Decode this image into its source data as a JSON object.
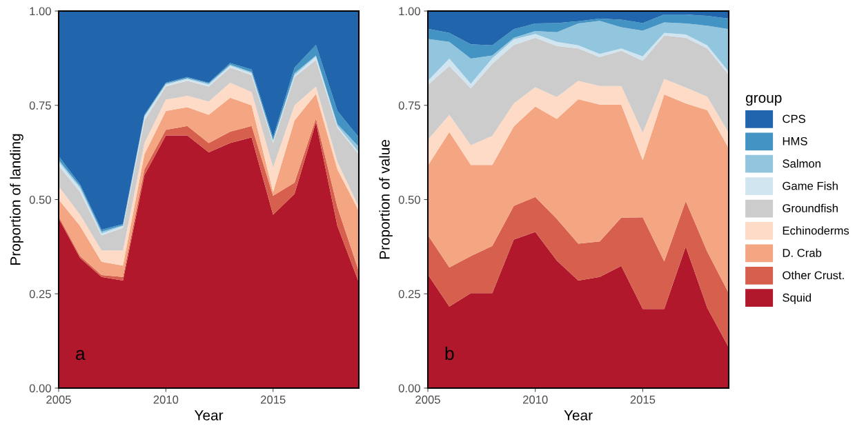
{
  "chart_data": [
    {
      "type": "area",
      "stacked": true,
      "xlabel": "Year",
      "ylabel": "Proportion of landing",
      "annotations": [
        "a"
      ],
      "x": [
        2005,
        2006,
        2007,
        2008,
        2009,
        2010,
        2011,
        2012,
        2013,
        2014,
        2015,
        2016,
        2017,
        2018,
        2019
      ],
      "xlim": [
        2005,
        2019
      ],
      "xticks": [
        2005,
        2010,
        2015
      ],
      "ylim": [
        0,
        1
      ],
      "yticks": [
        {
          "value": 0,
          "label": "0.00"
        },
        {
          "value": 0.25,
          "label": "0.25"
        },
        {
          "value": 0.5,
          "label": "0.50"
        },
        {
          "value": 0.75,
          "label": "0.75"
        },
        {
          "value": 1,
          "label": "1.00"
        }
      ],
      "grid": false,
      "legend": "right",
      "series": [
        {
          "name": "Squid",
          "color": "#b2182b",
          "values": [
            0.45,
            0.345,
            0.295,
            0.285,
            0.565,
            0.67,
            0.67,
            0.625,
            0.65,
            0.665,
            0.46,
            0.515,
            0.705,
            0.43,
            0.28
          ]
        },
        {
          "name": "Other Crust.",
          "color": "#d6604d",
          "values": [
            0.005,
            0.005,
            0.005,
            0.01,
            0.015,
            0.015,
            0.025,
            0.025,
            0.03,
            0.03,
            0.05,
            0.03,
            0.01,
            0.05,
            0.03
          ]
        },
        {
          "name": "D. Crab",
          "color": "#f4a582",
          "values": [
            0.045,
            0.08,
            0.035,
            0.03,
            0.04,
            0.05,
            0.05,
            0.075,
            0.09,
            0.055,
            0.01,
            0.165,
            0.065,
            0.1,
            0.16
          ]
        },
        {
          "name": "Echinoderms",
          "color": "#fddbc7",
          "values": [
            0.035,
            0.03,
            0.03,
            0.04,
            0.03,
            0.03,
            0.03,
            0.035,
            0.04,
            0.035,
            0.065,
            0.04,
            0.02,
            0.02,
            0.01
          ]
        },
        {
          "name": "Groundfish",
          "color": "#cccccc",
          "values": [
            0.055,
            0.06,
            0.04,
            0.06,
            0.06,
            0.035,
            0.04,
            0.04,
            0.04,
            0.045,
            0.065,
            0.075,
            0.07,
            0.09,
            0.14
          ]
        },
        {
          "name": "Game Fish",
          "color": "#d1e5f0",
          "values": [
            0.01,
            0.01,
            0.005,
            0.005,
            0.01,
            0.005,
            0.005,
            0.005,
            0.005,
            0.005,
            0.005,
            0.005,
            0.01,
            0.005,
            0.005
          ]
        },
        {
          "name": "Salmon",
          "color": "#92c5de",
          "values": [
            0.005,
            0.005,
            0.005,
            0.002,
            0.002,
            0.003,
            0.002,
            0.003,
            0.003,
            0.003,
            0.003,
            0.005,
            0.002,
            0.005,
            0.015
          ]
        },
        {
          "name": "HMS",
          "color": "#4393c3",
          "values": [
            0.01,
            0.005,
            0.005,
            0.003,
            0.003,
            0.002,
            0.003,
            0.002,
            0.004,
            0.007,
            0.007,
            0.015,
            0.028,
            0.035,
            0.025
          ]
        },
        {
          "name": "CPS",
          "color": "#2166ac",
          "values": [
            0.385,
            0.46,
            0.58,
            0.565,
            0.275,
            0.19,
            0.175,
            0.19,
            0.138,
            0.155,
            0.335,
            0.15,
            0.09,
            0.265,
            0.335
          ]
        }
      ]
    },
    {
      "type": "area",
      "stacked": true,
      "xlabel": "Year",
      "ylabel": "Proportion of value",
      "legend_title": "group",
      "annotations": [
        "b"
      ],
      "x": [
        2005,
        2006,
        2007,
        2008,
        2009,
        2010,
        2011,
        2012,
        2013,
        2014,
        2015,
        2016,
        2017,
        2018,
        2019
      ],
      "xlim": [
        2005,
        2019
      ],
      "xticks": [
        2005,
        2010,
        2015
      ],
      "ylim": [
        0,
        1
      ],
      "yticks": [
        {
          "value": 0,
          "label": "0.00"
        },
        {
          "value": 0.25,
          "label": "0.25"
        },
        {
          "value": 0.5,
          "label": "0.50"
        },
        {
          "value": 0.75,
          "label": "0.75"
        },
        {
          "value": 1,
          "label": "1.00"
        }
      ],
      "grid": false,
      "legend": "right",
      "series": [
        {
          "name": "Squid",
          "color": "#b2182b",
          "values": [
            0.301,
            0.216,
            0.252,
            0.252,
            0.394,
            0.414,
            0.338,
            0.285,
            0.295,
            0.324,
            0.21,
            0.21,
            0.375,
            0.213,
            0.108
          ]
        },
        {
          "name": "Other Crust.",
          "color": "#d6604d",
          "values": [
            0.105,
            0.104,
            0.098,
            0.125,
            0.089,
            0.093,
            0.111,
            0.098,
            0.094,
            0.128,
            0.243,
            0.126,
            0.121,
            0.149,
            0.144
          ]
        },
        {
          "name": "D. Crab",
          "color": "#f4a582",
          "values": [
            0.184,
            0.359,
            0.242,
            0.215,
            0.211,
            0.24,
            0.265,
            0.383,
            0.363,
            0.3,
            0.151,
            0.443,
            0.259,
            0.375,
            0.384
          ]
        },
        {
          "name": "Echinoderms",
          "color": "#fddbc7",
          "values": [
            0.068,
            0.046,
            0.052,
            0.077,
            0.061,
            0.051,
            0.058,
            0.049,
            0.049,
            0.049,
            0.073,
            0.041,
            0.042,
            0.036,
            0.041
          ]
        },
        {
          "name": "Groundfish",
          "color": "#cccccc",
          "values": [
            0.146,
            0.129,
            0.151,
            0.191,
            0.155,
            0.131,
            0.135,
            0.086,
            0.077,
            0.094,
            0.191,
            0.115,
            0.132,
            0.128,
            0.154
          ]
        },
        {
          "name": "Game Fish",
          "color": "#d1e5f0",
          "values": [
            0.011,
            0.02,
            0.012,
            0.015,
            0.015,
            0.01,
            0.011,
            0.008,
            0.008,
            0.006,
            0.012,
            0.007,
            0.009,
            0.008,
            0.008
          ]
        },
        {
          "name": "Salmon",
          "color": "#92c5de",
          "values": [
            0.111,
            0.044,
            0.067,
            0.007,
            0.004,
            0.008,
            0.026,
            0.058,
            0.088,
            0.056,
            0.068,
            0.028,
            0.029,
            0.052,
            0.113
          ]
        },
        {
          "name": "HMS",
          "color": "#4393c3",
          "values": [
            0.027,
            0.024,
            0.038,
            0.027,
            0.023,
            0.02,
            0.024,
            0.006,
            0.006,
            0.02,
            0.02,
            0.021,
            0.024,
            0.026,
            0.028
          ]
        },
        {
          "name": "CPS",
          "color": "#2166ac",
          "values": [
            0.047,
            0.058,
            0.088,
            0.091,
            0.048,
            0.033,
            0.032,
            0.027,
            0.02,
            0.023,
            0.032,
            0.009,
            0.009,
            0.013,
            0.02
          ]
        }
      ]
    }
  ]
}
